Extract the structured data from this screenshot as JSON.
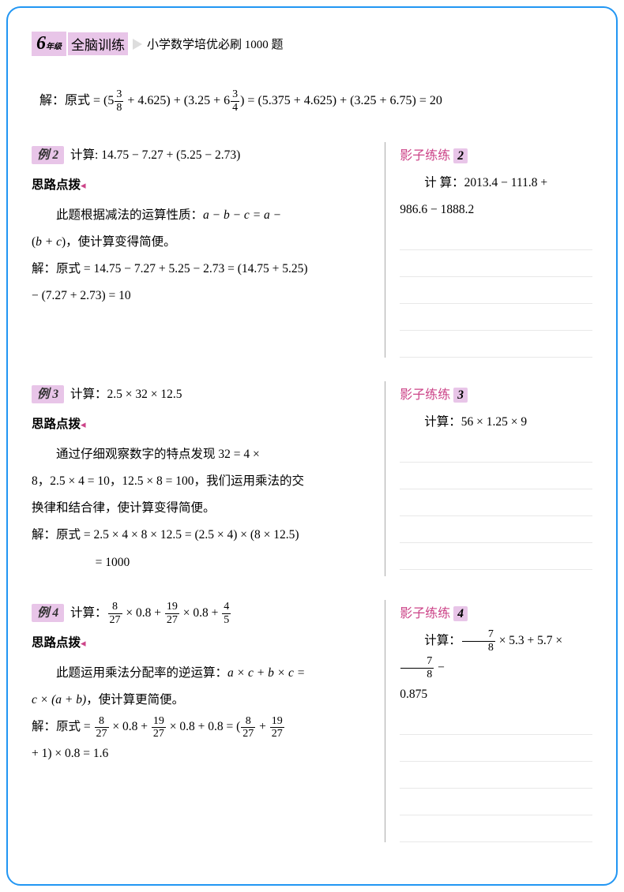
{
  "header": {
    "grade_num": "6",
    "grade_text": "年级",
    "brain": "全脑训练",
    "subtitle": "小学数学培优必刷 1000 题"
  },
  "solution_top": {
    "prefix": "解：原式 = (5",
    "f1_num": "3",
    "f1_den": "8",
    "mid1": " + 4.625) + (3.25 + 6",
    "f2_num": "3",
    "f2_den": "4",
    "tail": ") = (5.375 + 4.625) + (3.25 + 6.75) = 20"
  },
  "ex2": {
    "badge": "例 2",
    "problem": "计算: 14.75 − 7.27 + (5.25 − 2.73)",
    "hint_label": "思路点拨",
    "hint1": "此题根据减法的运算性质：",
    "hint_formula": "a − b − c = a −",
    "hint2_pre": "(",
    "hint2_mid": "b + c",
    "hint2_post": ")，使计算变得简便。",
    "sol1": "解：原式 = 14.75 − 7.27 + 5.25 − 2.73 = (14.75 + 5.25)",
    "sol2": "− (7.27 + 2.73) = 10",
    "shadow_label": "影子练练",
    "shadow_num": "2",
    "shadow_problem1": "计 算：2013.4 − 111.8 +",
    "shadow_problem2": "986.6 − 1888.2"
  },
  "ex3": {
    "badge": "例 3",
    "problem": "计算：2.5 × 32 × 12.5",
    "hint_label": "思路点拨",
    "hint1": "通过仔细观察数字的特点发现 32 = 4 ×",
    "hint2": "8，2.5 × 4 = 10，12.5 × 8 = 100，我们运用乘法的交",
    "hint3": "换律和结合律，使计算变得简便。",
    "sol1": "解：原式 = 2.5 × 4 × 8 × 12.5 = (2.5 × 4) × (8 × 12.5)",
    "sol2": "= 1000",
    "shadow_label": "影子练练",
    "shadow_num": "3",
    "shadow_problem": "计算：56 × 1.25 × 9"
  },
  "ex4": {
    "badge": "例 4",
    "problem_pre": "计算：",
    "f_8": "8",
    "f_27": "27",
    "f_19": "19",
    "f_4": "4",
    "f_5": "5",
    "problem_m1": " × 0.8 + ",
    "problem_m2": " × 0.8 + ",
    "hint_label": "思路点拨",
    "hint1_pre": "此题运用乘法分配率的逆运算：",
    "hint1_f": "a × c + b × c =",
    "hint2_pre": "c × (a + b)",
    "hint2_post": "，使计算更简便。",
    "sol_pre": "解：原式 = ",
    "sol_m1": " × 0.8 + ",
    "sol_m2": " × 0.8 + 0.8 = (",
    "sol_m3": " + ",
    "sol2_pre": "+ 1) × 0.8 = 1.6",
    "shadow_label": "影子练练",
    "shadow_num": "4",
    "shadow_pre": "计算：",
    "f_7": "7",
    "f_8b": "8",
    "shadow_m1": " × 5.3 + 5.7 × ",
    "shadow_m2": " −",
    "shadow_line2": "0.875"
  }
}
